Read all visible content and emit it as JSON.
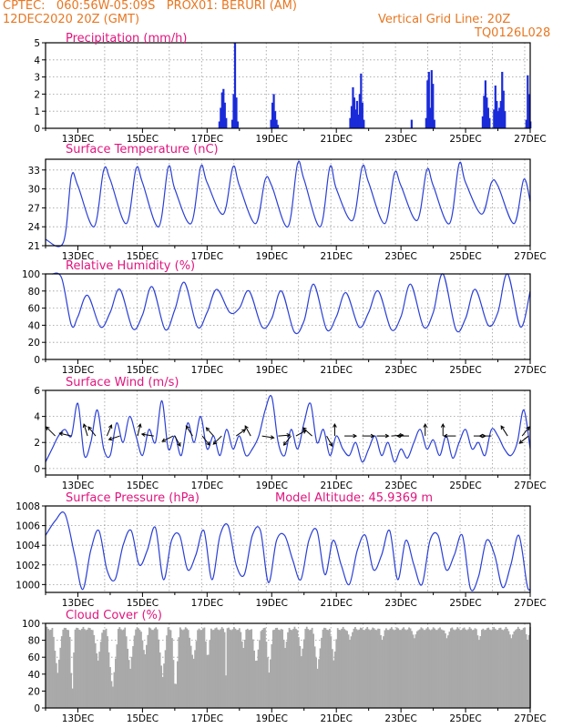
{
  "header": {
    "line1_left": "CPTEC:   060:56W-05:09S   PROX01: BERURI (AM)",
    "line2_left": "12DEC2020 20Z (GMT)",
    "line2_right": "Vertical Grid Line: 20Z",
    "line3_right": "TQ0126L028"
  },
  "colors": {
    "line": "#2a3fd6",
    "bar": "#1a2bd9",
    "cloud": "#a9a9a9",
    "title": "#e0157e",
    "header": "#e87722"
  },
  "chart_data": [
    {
      "type": "bar",
      "title": "Precipitation (mm/h)",
      "ylim": [
        0,
        5
      ],
      "yticks": [
        0,
        1,
        2,
        3,
        4,
        5
      ],
      "xlabels": [
        "13DEC",
        "15DEC",
        "17DEC",
        "19DEC",
        "21DEC",
        "23DEC",
        "25DEC",
        "27DEC"
      ],
      "bursts": [
        {
          "day": 17.35,
          "values": [
            0.4,
            1.2,
            2.1,
            2.3,
            1.5,
            0.6
          ]
        },
        {
          "day": 17.75,
          "values": [
            0.5,
            2.0,
            5.0,
            1.8,
            0.4
          ]
        },
        {
          "day": 18.95,
          "values": [
            0.5,
            1.5,
            2.0,
            1.0,
            0.5,
            0.2
          ]
        },
        {
          "day": 21.4,
          "values": [
            0.6,
            1.3,
            2.4,
            1.8,
            1.1,
            1.6,
            0.6
          ]
        },
        {
          "day": 21.65,
          "values": [
            0.8,
            2.0,
            3.2,
            1.5,
            0.5
          ]
        },
        {
          "day": 23.3,
          "values": [
            0.5
          ]
        },
        {
          "day": 23.75,
          "values": [
            0.6,
            2.8,
            3.3,
            1.2,
            3.4,
            2.6,
            0.5
          ]
        },
        {
          "day": 25.5,
          "values": [
            0.7,
            1.9,
            2.8,
            1.8,
            1.2,
            0.6
          ]
        },
        {
          "day": 25.85,
          "values": [
            1.1,
            2.5,
            1.6,
            1.0,
            1.2,
            1.6,
            3.3,
            2.2,
            1.0
          ]
        },
        {
          "day": 26.85,
          "values": [
            0.5,
            3.1,
            2.0,
            0.4
          ]
        }
      ]
    },
    {
      "type": "line",
      "title": "Surface Temperature (nC)",
      "ylim": [
        21,
        34.7
      ],
      "yticks": [
        21,
        24,
        27,
        30,
        33
      ],
      "xlabels": [
        "13DEC",
        "15DEC",
        "17DEC",
        "19DEC",
        "21DEC",
        "23DEC",
        "25DEC",
        "27DEC"
      ],
      "x": [
        12.0,
        12.55,
        12.8,
        13.0,
        13.5,
        13.8,
        14.0,
        14.5,
        14.8,
        15.0,
        15.5,
        15.8,
        16.0,
        16.5,
        16.8,
        17.0,
        17.5,
        17.8,
        18.0,
        18.5,
        18.8,
        19.0,
        19.5,
        19.8,
        20.0,
        20.5,
        20.8,
        21.0,
        21.5,
        21.8,
        22.0,
        22.5,
        22.8,
        23.0,
        23.5,
        23.8,
        24.0,
        24.5,
        24.8,
        25.0,
        25.5,
        25.8,
        26.0,
        26.5,
        26.8,
        27.0
      ],
      "y": [
        22.0,
        21.5,
        32.0,
        30.5,
        24.0,
        33.0,
        31.5,
        24.5,
        33.2,
        31.0,
        24.0,
        33.5,
        30.0,
        24.5,
        33.5,
        31.0,
        26.0,
        33.5,
        30.5,
        24.5,
        31.5,
        30.5,
        24.0,
        34.0,
        31.5,
        24.0,
        33.5,
        30.0,
        25.0,
        33.5,
        31.0,
        24.5,
        32.5,
        30.5,
        25.0,
        33.0,
        30.5,
        24.5,
        34.0,
        31.0,
        26.0,
        31.0,
        30.5,
        24.5,
        31.5,
        28.0
      ]
    },
    {
      "type": "line",
      "title": "Relative Humidity (%)",
      "ylim": [
        0,
        100
      ],
      "yticks": [
        0,
        20,
        40,
        60,
        80,
        100
      ],
      "xlabels": [
        "13DEC",
        "15DEC",
        "17DEC",
        "19DEC",
        "21DEC",
        "23DEC",
        "25DEC",
        "27DEC"
      ],
      "x": [
        12.2,
        12.5,
        12.8,
        13.0,
        13.3,
        13.7,
        14.0,
        14.3,
        14.7,
        15.0,
        15.3,
        15.7,
        16.0,
        16.3,
        16.7,
        17.0,
        17.3,
        17.7,
        18.0,
        18.3,
        18.7,
        19.0,
        19.3,
        19.7,
        20.0,
        20.3,
        20.7,
        21.0,
        21.3,
        21.7,
        22.0,
        22.3,
        22.7,
        23.0,
        23.3,
        23.7,
        24.0,
        24.3,
        24.7,
        25.0,
        25.3,
        25.7,
        26.0,
        26.3,
        26.7,
        27.0
      ],
      "y": [
        100,
        95,
        40,
        50,
        75,
        38,
        55,
        82,
        36,
        52,
        85,
        35,
        58,
        90,
        38,
        55,
        82,
        55,
        60,
        80,
        38,
        48,
        80,
        32,
        45,
        88,
        35,
        50,
        78,
        38,
        55,
        80,
        35,
        50,
        88,
        38,
        55,
        100,
        35,
        48,
        82,
        40,
        55,
        100,
        38,
        80
      ]
    },
    {
      "type": "line",
      "title": "Surface Wind (m/s)",
      "ylim": [
        -0.5,
        6
      ],
      "yticks": [
        0,
        2,
        4,
        6
      ],
      "xlabels": [
        "13DEC",
        "15DEC",
        "17DEC",
        "19DEC",
        "21DEC",
        "23DEC",
        "25DEC",
        "27DEC"
      ],
      "x": [
        12.0,
        12.2,
        12.4,
        12.6,
        12.8,
        13.0,
        13.2,
        13.4,
        13.6,
        13.8,
        14.0,
        14.2,
        14.4,
        14.6,
        14.8,
        15.0,
        15.2,
        15.4,
        15.6,
        15.8,
        16.0,
        16.2,
        16.4,
        16.6,
        16.8,
        17.0,
        17.2,
        17.4,
        17.6,
        17.8,
        18.0,
        18.2,
        18.4,
        18.6,
        18.8,
        19.0,
        19.2,
        19.4,
        19.6,
        19.8,
        20.0,
        20.2,
        20.4,
        20.6,
        20.8,
        21.0,
        21.2,
        21.4,
        21.6,
        21.8,
        22.0,
        22.2,
        22.4,
        22.6,
        22.8,
        23.0,
        23.2,
        23.4,
        23.6,
        23.8,
        24.0,
        24.2,
        24.4,
        24.6,
        24.8,
        25.0,
        25.2,
        25.4,
        25.6,
        25.8,
        26.0,
        26.2,
        26.4,
        26.6,
        26.8,
        27.0
      ],
      "y": [
        0.5,
        1.5,
        2.5,
        3.0,
        2.5,
        5.0,
        1.0,
        2.0,
        4.5,
        1.5,
        1.0,
        3.5,
        2.0,
        4.0,
        2.5,
        1.0,
        3.0,
        2.0,
        5.2,
        1.5,
        2.5,
        1.0,
        3.5,
        2.0,
        4.0,
        1.5,
        2.5,
        1.0,
        3.0,
        1.5,
        2.5,
        1.0,
        1.5,
        2.5,
        4.5,
        5.5,
        2.0,
        1.0,
        3.0,
        1.5,
        3.5,
        5.0,
        2.0,
        3.0,
        1.0,
        2.5,
        1.5,
        1.0,
        2.0,
        0.5,
        1.5,
        2.5,
        1.0,
        2.0,
        0.5,
        1.5,
        0.8,
        2.0,
        3.0,
        1.5,
        2.2,
        1.0,
        2.5,
        0.8,
        2.0,
        3.0,
        1.5,
        2.0,
        1.0,
        3.0,
        2.5,
        1.5,
        1.0,
        2.0,
        4.5,
        1.5
      ]
    },
    {
      "type": "line",
      "title": "Surface Pressure (hPa)",
      "annotation": "Model Altitude: 45.9369 m",
      "ylim": [
        999.2,
        1008
      ],
      "yticks": [
        1000,
        1002,
        1004,
        1006,
        1008
      ],
      "xlabels": [
        "13DEC",
        "15DEC",
        "17DEC",
        "19DEC",
        "21DEC",
        "23DEC",
        "25DEC",
        "27DEC"
      ],
      "x": [
        12.0,
        12.3,
        12.6,
        12.9,
        13.15,
        13.4,
        13.65,
        13.9,
        14.15,
        14.4,
        14.65,
        14.9,
        15.15,
        15.4,
        15.65,
        15.9,
        16.15,
        16.4,
        16.65,
        16.9,
        17.15,
        17.4,
        17.65,
        17.9,
        18.15,
        18.4,
        18.65,
        18.9,
        19.15,
        19.4,
        19.65,
        19.9,
        20.15,
        20.4,
        20.65,
        20.9,
        21.15,
        21.4,
        21.65,
        21.9,
        22.15,
        22.4,
        22.65,
        22.9,
        23.15,
        23.4,
        23.65,
        23.9,
        24.15,
        24.4,
        24.65,
        24.9,
        25.15,
        25.4,
        25.65,
        25.9,
        26.15,
        26.4,
        26.65,
        26.9,
        27.0
      ],
      "y": [
        1005.0,
        1006.5,
        1007.2,
        1003.0,
        999.5,
        1003.5,
        1005.5,
        1001.5,
        1000.5,
        1004.0,
        1005.5,
        1002.0,
        1003.5,
        1005.8,
        1000.5,
        1004.5,
        1005.0,
        1001.5,
        1003.0,
        1005.5,
        1000.5,
        1005.0,
        1006.0,
        1002.0,
        1001.0,
        1005.0,
        1005.5,
        1000.2,
        1004.5,
        1005.0,
        1002.5,
        1000.5,
        1004.5,
        1005.5,
        1001.0,
        1004.5,
        1002.0,
        1000.0,
        1003.5,
        1005.0,
        1001.5,
        1003.0,
        1005.5,
        1000.5,
        1004.5,
        1002.0,
        1000.0,
        1004.5,
        1005.0,
        1001.5,
        1003.0,
        1005.0,
        999.6,
        1000.8,
        1004.5,
        1003.0,
        999.7,
        1002.0,
        1005.0,
        1000.0,
        999.5
      ]
    },
    {
      "type": "bar",
      "title": "Cloud Cover (%)",
      "ylim": [
        0,
        100
      ],
      "yticks": [
        0,
        20,
        40,
        60,
        80,
        100
      ],
      "xlabels": [
        "13DEC",
        "15DEC",
        "17DEC",
        "19DEC",
        "21DEC",
        "23DEC",
        "25DEC",
        "27DEC"
      ],
      "dips": [
        {
          "day": 12.35,
          "min": 40,
          "width": 0.15
        },
        {
          "day": 12.8,
          "min": 10,
          "width": 0.08
        },
        {
          "day": 13.6,
          "min": 55,
          "width": 0.15
        },
        {
          "day": 14.05,
          "min": 20,
          "width": 0.18
        },
        {
          "day": 14.6,
          "min": 45,
          "width": 0.15
        },
        {
          "day": 15.05,
          "min": 60,
          "width": 0.12
        },
        {
          "day": 15.6,
          "min": 35,
          "width": 0.15
        },
        {
          "day": 16.0,
          "min": 15,
          "width": 0.12
        },
        {
          "day": 16.55,
          "min": 55,
          "width": 0.15
        },
        {
          "day": 17.0,
          "min": 55,
          "width": 0.1
        },
        {
          "day": 17.55,
          "min": 0,
          "width": 0.03
        },
        {
          "day": 18.1,
          "min": 70,
          "width": 0.1
        },
        {
          "day": 18.5,
          "min": 50,
          "width": 0.15
        },
        {
          "day": 18.9,
          "min": 40,
          "width": 0.12
        },
        {
          "day": 19.4,
          "min": 70,
          "width": 0.1
        },
        {
          "day": 19.9,
          "min": 60,
          "width": 0.12
        },
        {
          "day": 20.4,
          "min": 45,
          "width": 0.15
        },
        {
          "day": 20.9,
          "min": 55,
          "width": 0.12
        },
        {
          "day": 21.4,
          "min": 80,
          "width": 0.1
        },
        {
          "day": 22.4,
          "min": 80,
          "width": 0.1
        },
        {
          "day": 23.4,
          "min": 82,
          "width": 0.1
        },
        {
          "day": 24.4,
          "min": 82,
          "width": 0.1
        },
        {
          "day": 25.4,
          "min": 80,
          "width": 0.1
        },
        {
          "day": 26.4,
          "min": 82,
          "width": 0.1
        },
        {
          "day": 26.9,
          "min": 80,
          "width": 0.08
        }
      ]
    }
  ],
  "wind_arrows": [
    {
      "day": 12.3,
      "u": -1.0,
      "v": 1.0
    },
    {
      "day": 12.8,
      "u": -1.3,
      "v": 0.3
    },
    {
      "day": 13.3,
      "u": -0.4,
      "v": 1.3
    },
    {
      "day": 13.55,
      "u": -0.8,
      "v": 1.0
    },
    {
      "day": 13.9,
      "u": 0.5,
      "v": 1.2
    },
    {
      "day": 14.3,
      "u": -1.2,
      "v": -0.4
    },
    {
      "day": 14.85,
      "u": 0.3,
      "v": 1.3
    },
    {
      "day": 15.35,
      "u": -1.3,
      "v": 0.2
    },
    {
      "day": 15.95,
      "u": -1.2,
      "v": -0.6
    },
    {
      "day": 16.0,
      "u": 0.6,
      "v": -1.1
    },
    {
      "day": 16.55,
      "u": -0.7,
      "v": 1.1
    },
    {
      "day": 16.85,
      "u": 0.8,
      "v": -1.0
    },
    {
      "day": 17.2,
      "u": -0.8,
      "v": 0.9
    },
    {
      "day": 17.45,
      "u": -0.9,
      "v": -0.9
    },
    {
      "day": 17.9,
      "u": 1.0,
      "v": 0.7
    },
    {
      "day": 18.35,
      "u": -0.6,
      "v": 1.1
    },
    {
      "day": 18.7,
      "u": 1.3,
      "v": -0.2
    },
    {
      "day": 19.2,
      "u": 1.3,
      "v": 0.1
    },
    {
      "day": 19.6,
      "u": -0.8,
      "v": -1.0
    },
    {
      "day": 19.75,
      "u": 1.1,
      "v": 0.6
    },
    {
      "day": 20.25,
      "u": -1.0,
      "v": 0.9
    },
    {
      "day": 20.7,
      "u": 0.6,
      "v": -1.1
    },
    {
      "day": 20.95,
      "u": 0.0,
      "v": 1.3
    },
    {
      "day": 21.25,
      "u": 1.3,
      "v": 0.0
    },
    {
      "day": 21.8,
      "u": 1.3,
      "v": 0.0
    },
    {
      "day": 22.25,
      "u": 1.3,
      "v": 0.0
    },
    {
      "day": 22.7,
      "u": 1.3,
      "v": 0.1
    },
    {
      "day": 23.25,
      "u": -1.3,
      "v": 0.0
    },
    {
      "day": 23.75,
      "u": 0.0,
      "v": 1.3
    },
    {
      "day": 24.3,
      "u": 0.0,
      "v": 1.3
    },
    {
      "day": 24.7,
      "u": -1.3,
      "v": 0.0
    },
    {
      "day": 25.25,
      "u": 1.3,
      "v": 0.0
    },
    {
      "day": 25.8,
      "u": -1.3,
      "v": 0.0
    },
    {
      "day": 26.3,
      "u": -0.7,
      "v": 1.1
    },
    {
      "day": 26.75,
      "u": 0.8,
      "v": 1.0
    },
    {
      "day": 26.95,
      "u": -1.0,
      "v": -0.8
    }
  ]
}
